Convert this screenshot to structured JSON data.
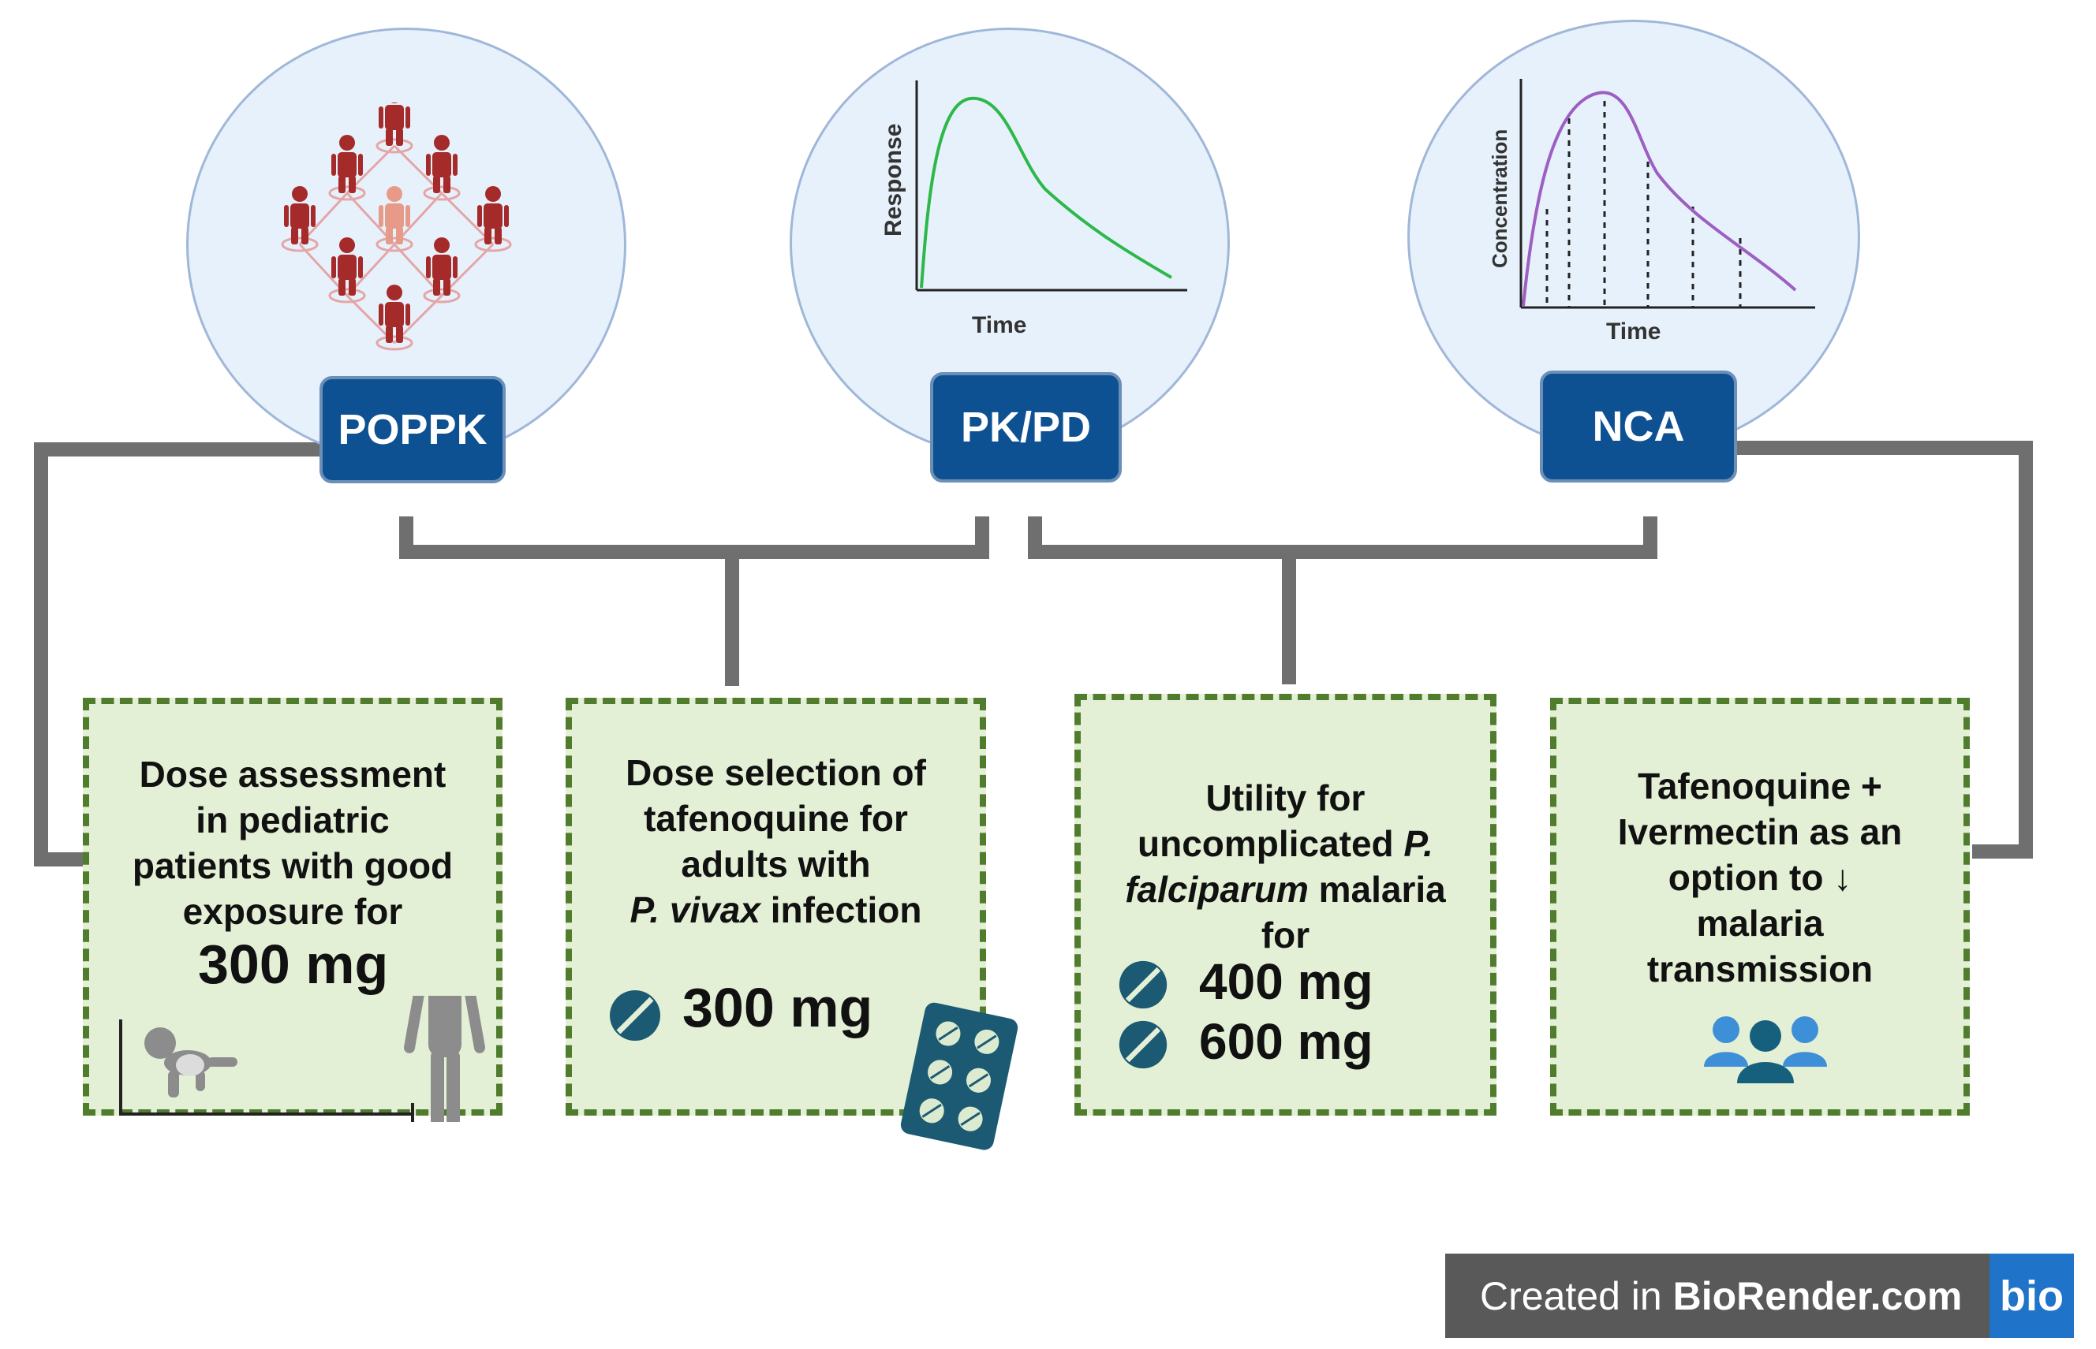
{
  "methods": {
    "poppk": "POPPK",
    "pkpd": "PK/PD",
    "nca": "NCA"
  },
  "pkpd_chart": {
    "ylabel": "Response",
    "xlabel": "Time"
  },
  "nca_chart": {
    "ylabel": "Concentration",
    "xlabel": "Time"
  },
  "boxes": {
    "pediatric": {
      "lines": [
        "Dose assessment",
        "in pediatric",
        "patients with good",
        "exposure for"
      ],
      "dose": "300 mg"
    },
    "vivax": {
      "line1": "Dose selection of",
      "line2": "tafenoquine for",
      "line3": "adults with",
      "line4_italic": "P. vivax",
      "line4_rest": " infection",
      "dose": "300 mg"
    },
    "falciparum": {
      "line1": "Utility for",
      "line2_pre": "uncomplicated ",
      "line2_italic": "P.",
      "line3_italic": "falciparum",
      "line3_rest": " malaria",
      "line4": "for",
      "dose1": "400 mg",
      "dose2": "600 mg"
    },
    "ivermectin": {
      "lines": [
        "Tafenoquine +",
        "Ivermectin as an",
        "option to ↓",
        "malaria",
        "transmission"
      ]
    }
  },
  "badge": {
    "prefix": "Created in ",
    "brand": "BioRender.com",
    "logo": "bio"
  },
  "colors": {
    "label_bg": "#0d5192",
    "box_bg": "#e4f0d6",
    "box_border": "#4f7c2d",
    "connector": "#707070",
    "people": "#a52a2a",
    "pkpd_curve": "#2db84a",
    "nca_curve": "#9d5fc2",
    "pill": "#1c5a73"
  }
}
